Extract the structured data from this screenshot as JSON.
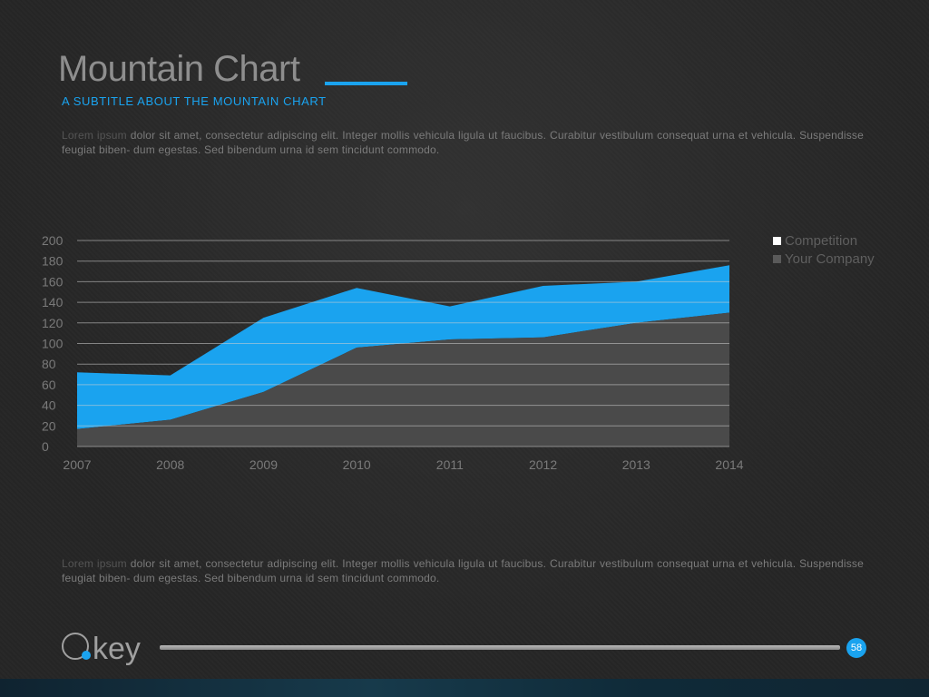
{
  "slide": {
    "title": "Mountain Chart",
    "subtitle": "A SUBTITLE ABOUT THE MOUNTAIN CHART",
    "paragraph_top_lead": "Lorem ipsum",
    "paragraph_top_rest": " dolor sit amet, consectetur adipiscing elit. Integer mollis vehicula ligula ut faucibus. Curabitur vestibulum consequat urna et vehicula. Suspendisse feugiat biben- dum egestas. Sed bibendum urna id sem tincidunt commodo.",
    "paragraph_bottom_lead": "Lorem ipsum",
    "paragraph_bottom_rest": " dolor sit amet, consectetur adipiscing elit. Integer mollis vehicula ligula ut faucibus. Curabitur vestibulum consequat urna et vehicula. Suspendisse feugiat biben- dum egestas. Sed bibendum urna id sem tincidunt commodo.",
    "logo_text": "key",
    "page_number": "58",
    "accent_color": "#1aa3ef"
  },
  "chart_data": {
    "type": "area",
    "stacked": true,
    "title": "",
    "xlabel": "",
    "ylabel": "",
    "x": [
      "2007",
      "2008",
      "2009",
      "2010",
      "2011",
      "2012",
      "2013",
      "2014"
    ],
    "ylim": [
      0,
      200
    ],
    "yticks": [
      "0",
      "20",
      "40",
      "60",
      "80",
      "100",
      "120",
      "140",
      "160",
      "180",
      "200"
    ],
    "grid": true,
    "legend_position": "right",
    "series": [
      {
        "name": "Competition",
        "color": "#1aa3ef",
        "values": [
          55,
          43,
          72,
          58,
          32,
          50,
          40,
          46
        ]
      },
      {
        "name": "Your Company",
        "color": "#4a4a4a",
        "values": [
          17,
          26,
          53,
          96,
          104,
          106,
          120,
          130
        ]
      }
    ],
    "legend_swatch_colors": [
      "#ffffff",
      "#5a5a5a"
    ]
  }
}
